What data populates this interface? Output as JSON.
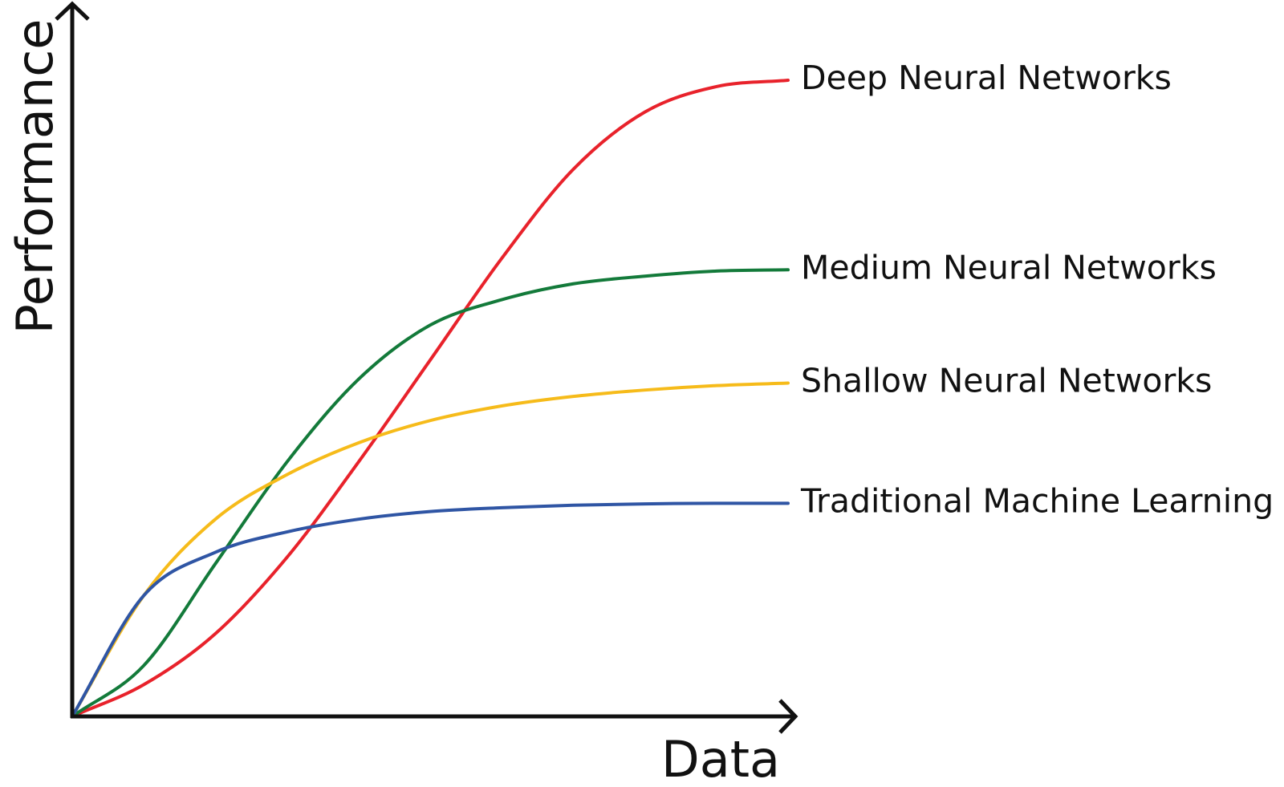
{
  "chart_data": {
    "type": "line",
    "title": "",
    "xlabel": "Data",
    "ylabel": "Performance",
    "grid": false,
    "xlim": [
      0,
      100
    ],
    "ylim": [
      0,
      100
    ],
    "x": [
      0,
      10,
      20,
      30,
      40,
      50,
      60,
      70,
      80,
      90,
      100
    ],
    "series": [
      {
        "name": "Deep Neural Networks",
        "color": "#e8222b",
        "values": [
          0,
          5,
          13,
          25,
          40,
          56,
          72,
          86,
          95,
          99,
          100
        ]
      },
      {
        "name": "Medium Neural Networks",
        "color": "#137a3a",
        "values": [
          0,
          8,
          24,
          40,
          53,
          61.5,
          65.5,
          68,
          69.2,
          70,
          70.2
        ]
      },
      {
        "name": "Shallow Neural Networks",
        "color": "#f6bb1a",
        "values": [
          0,
          19,
          31,
          38,
          43,
          46.5,
          48.8,
          50.3,
          51.3,
          52,
          52.4
        ]
      },
      {
        "name": "Traditional Machine Learning",
        "color": "#2f55a4",
        "values": [
          0,
          19,
          25.8,
          29,
          31,
          32.2,
          32.8,
          33.2,
          33.4,
          33.5,
          33.5
        ]
      }
    ]
  }
}
